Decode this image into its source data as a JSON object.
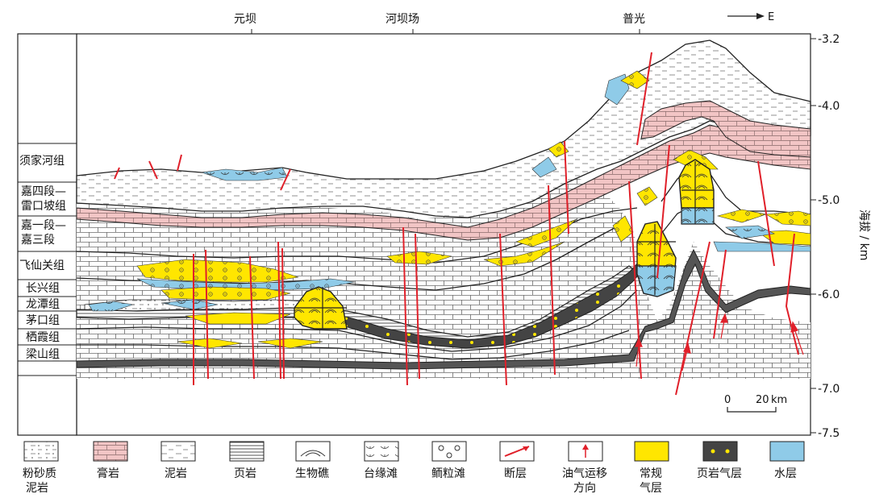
{
  "top_labels": [
    "元坝",
    "河坝场",
    "普光"
  ],
  "direction": "E",
  "formations": [
    "须家河组",
    "嘉四段—",
    "雷口坡组",
    "嘉一段—",
    "嘉三段",
    "飞仙关组",
    "长兴组",
    "龙潭组",
    "茅口组",
    "栖霞组",
    "梁山组"
  ],
  "elevation_axis": {
    "label": "海拔 / km",
    "ticks": [
      "-3.2",
      "-4.0",
      "-5.0",
      "-6.0",
      "-7.0",
      "-7.5"
    ]
  },
  "scale_bar": {
    "zero": "0",
    "length": "20",
    "unit": "km"
  },
  "legend": [
    {
      "icon": "silty-mudstone-icon",
      "label": "粉砂质",
      "label2": "泥岩"
    },
    {
      "icon": "gypsum-icon",
      "label": "膏岩",
      "label2": ""
    },
    {
      "icon": "mudstone-icon",
      "label": "泥岩",
      "label2": ""
    },
    {
      "icon": "shale-icon",
      "label": "页岩",
      "label2": ""
    },
    {
      "icon": "bioreef-icon",
      "label": "生物礁",
      "label2": ""
    },
    {
      "icon": "platform-margin-shoal-icon",
      "label": "台缘滩",
      "label2": ""
    },
    {
      "icon": "oolitic-shoal-icon",
      "label": "鲕粒滩",
      "label2": ""
    },
    {
      "icon": "fault-icon",
      "label": "断层",
      "label2": ""
    },
    {
      "icon": "migration-arrow-icon",
      "label": "油气运移",
      "label2": "方向"
    },
    {
      "icon": "conventional-gas-icon",
      "label": "常规",
      "label2": "气层"
    },
    {
      "icon": "shale-gas-icon",
      "label": "页岩气层",
      "label2": ""
    },
    {
      "icon": "water-layer-icon",
      "label": "水层",
      "label2": ""
    }
  ],
  "colors": {
    "fault": "#e0202a",
    "gas": "#ffe600",
    "water": "#8fcbe8",
    "gypsum": "#f2c5c5",
    "shale_gas": "#555555",
    "line": "#222222"
  }
}
